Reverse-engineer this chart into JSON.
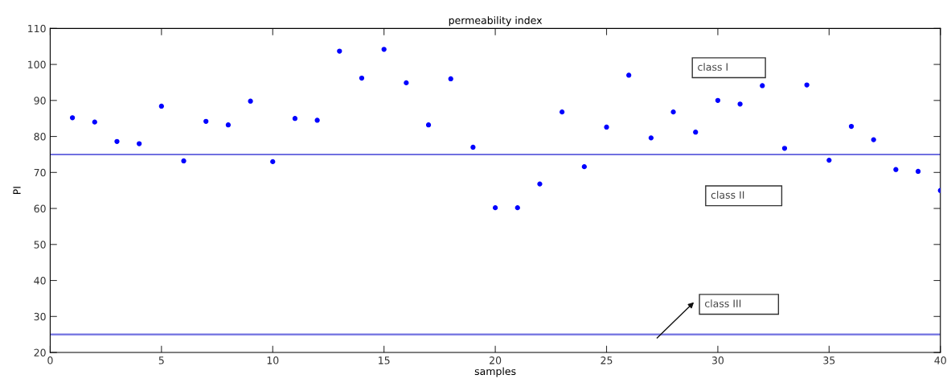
{
  "chart_data": {
    "type": "scatter",
    "title": "permeability index",
    "xlabel": "samples",
    "ylabel": "PI",
    "x": [
      1,
      2,
      3,
      4,
      5,
      6,
      7,
      8,
      9,
      10,
      11,
      12,
      13,
      14,
      15,
      16,
      17,
      18,
      19,
      20,
      21,
      22,
      23,
      24,
      25,
      26,
      27,
      28,
      29,
      30,
      31,
      32,
      33,
      34,
      35,
      36,
      37,
      38,
      39,
      40
    ],
    "series": [
      {
        "color": "#0000ff",
        "values": [
          85.2,
          84,
          78.6,
          78,
          88.4,
          73.2,
          84.2,
          83.2,
          89.8,
          73,
          85,
          84.5,
          103.7,
          96.2,
          104.2,
          94.9,
          83.2,
          96,
          77,
          60.2,
          60.2,
          66.8,
          86.8,
          71.6,
          82.6,
          97,
          79.6,
          86.8,
          81.2,
          90,
          89,
          94.1,
          76.7,
          94.3,
          73.4,
          82.8,
          79.1,
          70.8,
          70.3,
          65
        ]
      }
    ],
    "marker": "circle",
    "xlim": [
      0,
      40
    ],
    "xticks": [
      0,
      5,
      10,
      15,
      20,
      25,
      30,
      35,
      40
    ],
    "ylim": [
      20,
      110
    ],
    "yticks": [
      20,
      30,
      40,
      50,
      60,
      70,
      80,
      90,
      100,
      110
    ],
    "ref_lines": [
      {
        "axis": "y",
        "value": 75,
        "color": "#7070e0"
      },
      {
        "axis": "y",
        "value": 25,
        "color": "#7070e0"
      }
    ],
    "annotations": [
      "class I",
      "class II",
      "class III"
    ],
    "grid": false
  }
}
